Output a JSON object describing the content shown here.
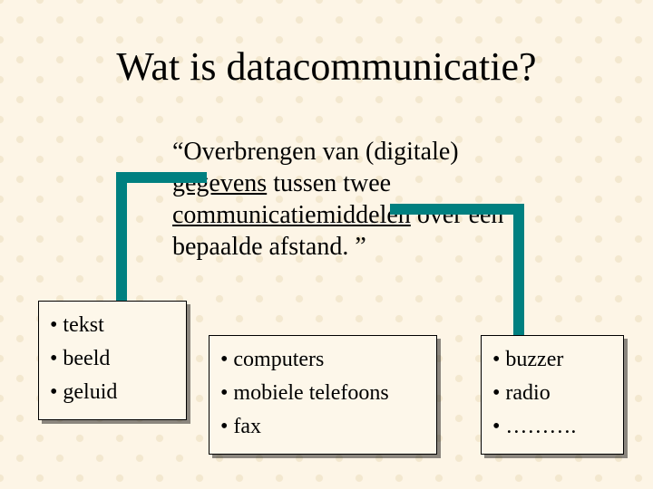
{
  "title": "Wat is datacommunicatie?",
  "definition": {
    "pre": "“Overbrengen van (digitale) ",
    "u1": "gegevens",
    "mid1": " tussen twee ",
    "u2": "communicatiemiddelen",
    "mid2": " over een bepaalde afstand. ”"
  },
  "box_left": {
    "items": [
      "• tekst",
      "• beeld",
      "• geluid"
    ]
  },
  "box_mid": {
    "items": [
      "• computers",
      "• mobiele telefoons",
      "• fax"
    ]
  },
  "box_right": {
    "items": [
      "• buzzer",
      "• radio",
      "• ………."
    ]
  },
  "colors": {
    "background": "#fdf5e6",
    "connector": "#008080",
    "box_bg": "#fdf7ea",
    "text": "#000000"
  }
}
